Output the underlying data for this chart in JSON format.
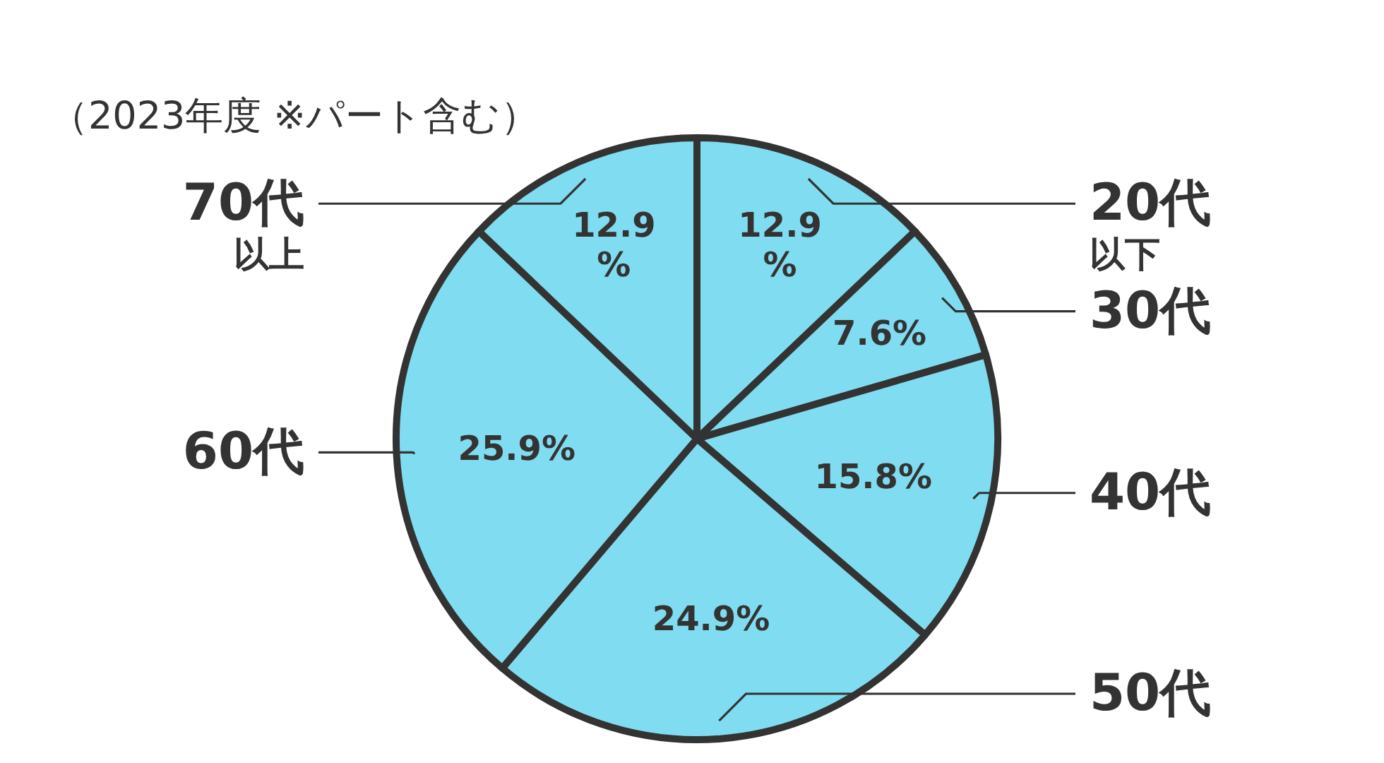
{
  "chart_data": {
    "type": "pie",
    "subtitle": "（2023年度 ※パート含む）",
    "categories": [
      "20代以下",
      "30代",
      "40代",
      "50代",
      "60代",
      "70代以上"
    ],
    "values": [
      12.9,
      7.6,
      15.8,
      24.9,
      25.9,
      12.9
    ],
    "colors": [
      "#80dcf0",
      "#80dcf0",
      "#80dcf0",
      "#80dcf0",
      "#80dcf0",
      "#80dcf0"
    ],
    "value_labels": [
      "12.9\n%",
      "7.6%",
      "15.8%",
      "24.9%",
      "25.9%",
      "12.9\n%"
    ]
  }
}
